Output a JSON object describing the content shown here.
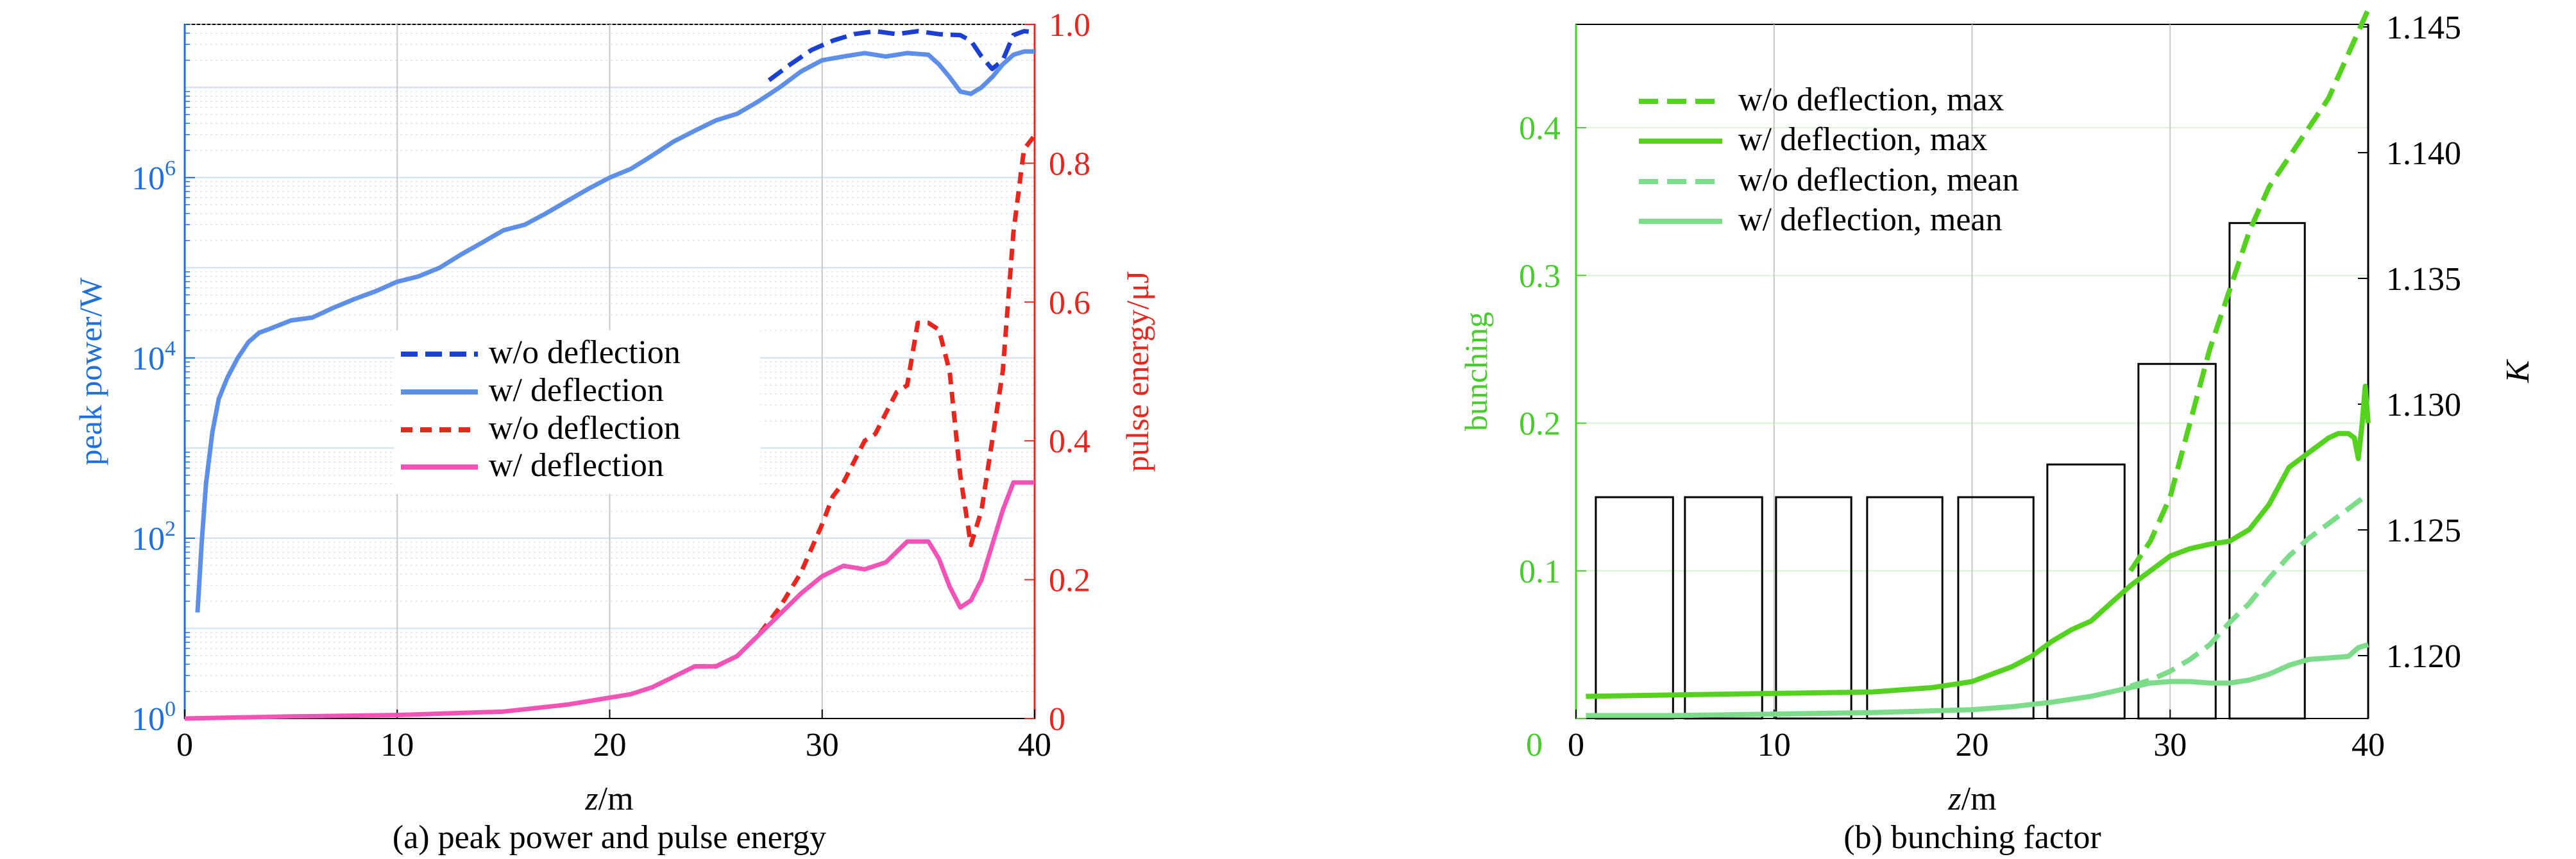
{
  "colors": {
    "blue_axis": "#1f6fdc",
    "red_axis": "#e8261e",
    "dark_blue": "#1a3fd1",
    "light_blue": "#5d8fe8",
    "red": "#e8261e",
    "pink": "#f253b6",
    "green_dark": "#55d21f",
    "green_light": "#7ddc89",
    "green_axis": "#47cc2c",
    "black": "#000000",
    "grid": "#c8c8c8",
    "minor_grid": "#d8e3f3"
  },
  "chart_data": [
    {
      "type": "line",
      "caption": "(a) peak power and pulse energy",
      "xlabel_italic": "z",
      "xlabel_rest": "/m",
      "xlim": [
        0,
        40
      ],
      "xticks": [
        0,
        10,
        20,
        30,
        40
      ],
      "grid": true,
      "legend_position": "center",
      "left_axis": {
        "label": "peak power/W",
        "scale": "log",
        "ylim": [
          1,
          50000000
        ],
        "ticks": [
          {
            "value": 1,
            "base": "10",
            "exp": "0"
          },
          {
            "value": 100,
            "base": "10",
            "exp": "2"
          },
          {
            "value": 10000,
            "base": "10",
            "exp": "4"
          },
          {
            "value": 1000000,
            "base": "10",
            "exp": "6"
          }
        ]
      },
      "right_axis": {
        "label": "pulse energy/μJ",
        "scale": "linear",
        "ylim": [
          0,
          1
        ],
        "ticks": [
          "0",
          "0.2",
          "0.4",
          "0.6",
          "0.8",
          "1.0"
        ]
      },
      "series": [
        {
          "name": "w/o deflection",
          "axis": "left",
          "style": "dashed",
          "color_key": "dark_blue",
          "x": [
            27.5,
            28.5,
            29.5,
            30.5,
            31.5,
            32.5,
            33.5,
            34.5,
            35.5,
            36.5,
            37.0,
            37.5,
            38.0,
            38.5,
            39.0,
            39.5,
            40.0
          ],
          "y": [
            12000000,
            18000000,
            26000000,
            33000000,
            39000000,
            42000000,
            39000000,
            42000000,
            39000000,
            38000000,
            33000000,
            22000000,
            16000000,
            20000000,
            38000000,
            42000000,
            41000000
          ]
        },
        {
          "name": "w/ deflection",
          "axis": "left",
          "style": "solid",
          "color_key": "light_blue",
          "x": [
            0.6,
            0.8,
            1.0,
            1.3,
            1.6,
            2.0,
            2.5,
            3.0,
            3.5,
            4.0,
            5.0,
            6.0,
            7.0,
            8.0,
            9.0,
            10.0,
            11.0,
            12.0,
            13.0,
            14.0,
            15.0,
            16.0,
            17.0,
            18.0,
            19.0,
            20.0,
            21.0,
            22.0,
            23.0,
            24.0,
            25.0,
            26.0,
            27.0,
            28.0,
            29.0,
            30.0,
            31.0,
            32.0,
            33.0,
            34.0,
            35.0,
            35.5,
            36.0,
            36.5,
            37.0,
            37.5,
            38.0,
            38.5,
            39.0,
            39.5,
            40.0
          ],
          "y": [
            15,
            90,
            400,
            1500,
            3500,
            6000,
            10000,
            15000,
            19000,
            21000,
            26000,
            28000,
            36000,
            45000,
            55000,
            70000,
            80000,
            100000,
            140000,
            190000,
            260000,
            300000,
            400000,
            550000,
            750000,
            1000000,
            1250000,
            1750000,
            2500000,
            3300000,
            4300000,
            5100000,
            7000000,
            10000000,
            15000000,
            20000000,
            22000000,
            24000000,
            22000000,
            24000000,
            23000000,
            18000000,
            13000000,
            9000000,
            8500000,
            10000000,
            13000000,
            18000000,
            23000000,
            25000000,
            25000000
          ]
        },
        {
          "name": "w/o deflection",
          "axis": "right",
          "style": "dashed",
          "color_key": "red",
          "x": [
            24.0,
            25.0,
            26.0,
            27.0,
            28.0,
            29.0,
            30.0,
            30.5,
            31.0,
            31.5,
            32.0,
            32.5,
            33.0,
            33.5,
            34.0,
            34.5,
            35.0,
            35.5,
            36.0,
            36.5,
            37.0,
            37.5,
            38.0,
            38.5,
            39.0,
            39.5,
            40.0
          ],
          "y": [
            0.075,
            0.075,
            0.09,
            0.12,
            0.16,
            0.21,
            0.28,
            0.32,
            0.34,
            0.37,
            0.4,
            0.41,
            0.44,
            0.47,
            0.48,
            0.57,
            0.57,
            0.56,
            0.5,
            0.35,
            0.25,
            0.3,
            0.4,
            0.5,
            0.7,
            0.82,
            0.84
          ]
        },
        {
          "name": "w/ deflection",
          "axis": "right",
          "style": "solid",
          "color_key": "pink",
          "x": [
            0,
            5,
            10,
            15,
            18,
            19,
            20,
            21,
            22,
            23,
            24,
            25,
            26,
            27,
            28,
            29,
            30,
            31,
            32,
            33,
            34,
            35,
            35.5,
            36,
            36.5,
            37,
            37.5,
            38,
            38.5,
            39,
            39.5,
            40
          ],
          "y": [
            0,
            0.003,
            0.005,
            0.01,
            0.02,
            0.025,
            0.03,
            0.035,
            0.045,
            0.06,
            0.075,
            0.075,
            0.09,
            0.12,
            0.15,
            0.18,
            0.205,
            0.22,
            0.215,
            0.225,
            0.255,
            0.255,
            0.23,
            0.19,
            0.16,
            0.17,
            0.2,
            0.25,
            0.3,
            0.34,
            0.34,
            0.34
          ]
        }
      ]
    },
    {
      "type": "line",
      "caption": "(b) bunching factor",
      "xlabel_italic": "z",
      "xlabel_rest": "/m",
      "xlim": [
        0,
        40
      ],
      "xticks": [
        0,
        10,
        20,
        30,
        40
      ],
      "grid": true,
      "legend_position": "top-left",
      "left_axis": {
        "label": "bunching",
        "scale": "linear",
        "ylim": [
          0,
          0.47
        ],
        "ticks": [
          "0",
          "0.1",
          "0.2",
          "0.3",
          "0.4"
        ],
        "tick_values": [
          0,
          0.1,
          0.2,
          0.3,
          0.4
        ]
      },
      "right_axis": {
        "label": "K",
        "scale": "linear",
        "ylim": [
          1.1175,
          1.1451
        ],
        "ticks": [
          "1.120",
          "1.125",
          "1.130",
          "1.135",
          "1.140",
          "1.145"
        ],
        "tick_values": [
          1.12,
          1.125,
          1.13,
          1.135,
          1.14,
          1.145
        ]
      },
      "series": [
        {
          "name": "w/o deflection, max",
          "axis": "left",
          "style": "dashed",
          "color_key": "green_dark",
          "x": [
            28.0,
            29.0,
            30.0,
            31.0,
            32.0,
            33.0,
            34.0,
            35.0,
            36.0,
            37.0,
            38.0,
            39.0,
            40.0
          ],
          "y": [
            0.1,
            0.12,
            0.15,
            0.2,
            0.25,
            0.29,
            0.33,
            0.36,
            0.38,
            0.4,
            0.42,
            0.45,
            0.48
          ]
        },
        {
          "name": "w/ deflection, max",
          "axis": "left",
          "style": "solid",
          "color_key": "green_dark",
          "x": [
            0.5,
            5,
            10,
            15,
            18,
            20,
            21,
            22,
            23,
            24,
            25,
            26,
            27,
            28,
            29,
            30,
            31,
            32,
            33,
            34,
            35,
            36,
            37,
            38,
            38.5,
            39,
            39.3,
            39.5,
            39.7,
            39.85,
            40
          ],
          "y": [
            0.015,
            0.016,
            0.017,
            0.018,
            0.021,
            0.025,
            0.03,
            0.035,
            0.042,
            0.052,
            0.06,
            0.066,
            0.078,
            0.09,
            0.1,
            0.11,
            0.115,
            0.118,
            0.12,
            0.128,
            0.145,
            0.17,
            0.18,
            0.19,
            0.193,
            0.193,
            0.19,
            0.176,
            0.2,
            0.225,
            0.2
          ]
        },
        {
          "name": "w/o deflection, mean",
          "axis": "left",
          "style": "dashed",
          "color_key": "green_light",
          "x": [
            28,
            29,
            30,
            31,
            32,
            33,
            34,
            35,
            36,
            37,
            38,
            39,
            40
          ],
          "y": [
            0.022,
            0.026,
            0.032,
            0.04,
            0.05,
            0.065,
            0.078,
            0.095,
            0.11,
            0.122,
            0.132,
            0.142,
            0.152
          ]
        },
        {
          "name": "w/ deflection, mean",
          "axis": "left",
          "style": "solid",
          "color_key": "green_light",
          "x": [
            0.5,
            5,
            10,
            15,
            20,
            22,
            24,
            25,
            26,
            27,
            28,
            29,
            30,
            31,
            32,
            33,
            34,
            35,
            36,
            37,
            38,
            39,
            39.5,
            40
          ],
          "y": [
            0.002,
            0.002,
            0.003,
            0.004,
            0.006,
            0.008,
            0.011,
            0.013,
            0.015,
            0.018,
            0.021,
            0.024,
            0.025,
            0.025,
            0.024,
            0.024,
            0.026,
            0.03,
            0.036,
            0.04,
            0.041,
            0.042,
            0.048,
            0.05
          ]
        }
      ],
      "k_bars": [
        {
          "x0": 1.0,
          "x1": 4.9,
          "k": 1.1263
        },
        {
          "x0": 5.5,
          "x1": 9.4,
          "k": 1.1263
        },
        {
          "x0": 10.1,
          "x1": 13.9,
          "k": 1.1263
        },
        {
          "x0": 14.7,
          "x1": 18.5,
          "k": 1.1263
        },
        {
          "x0": 19.3,
          "x1": 23.1,
          "k": 1.1263
        },
        {
          "x0": 23.8,
          "x1": 27.7,
          "k": 1.1276
        },
        {
          "x0": 28.4,
          "x1": 32.3,
          "k": 1.1316
        },
        {
          "x0": 33.0,
          "x1": 36.8,
          "k": 1.1372
        }
      ]
    }
  ]
}
